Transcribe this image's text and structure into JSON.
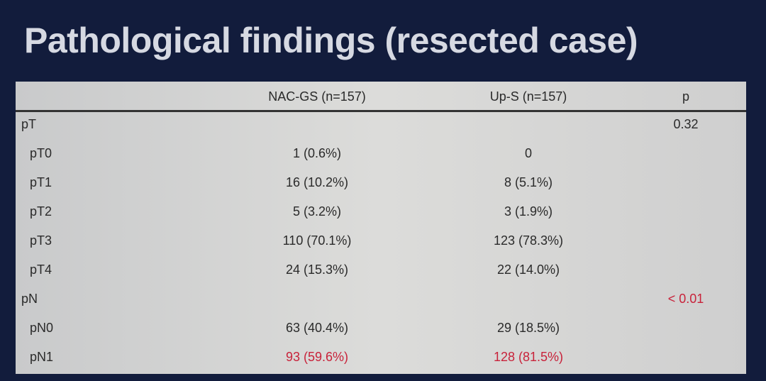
{
  "title": "Pathological findings (resected case)",
  "table": {
    "headers": [
      "",
      "NAC-GS  (n=157)",
      "Up-S (n=157)",
      "p"
    ],
    "rows": [
      {
        "label": "pT",
        "group": true,
        "nac": "",
        "ups": "",
        "p": "0.32",
        "highlight": false
      },
      {
        "label": "pT0",
        "group": false,
        "nac": "1 (0.6%)",
        "ups": "0",
        "p": "",
        "highlight": false
      },
      {
        "label": "pT1",
        "group": false,
        "nac": "16 (10.2%)",
        "ups": "8 (5.1%)",
        "p": "",
        "highlight": false
      },
      {
        "label": "pT2",
        "group": false,
        "nac": "5 (3.2%)",
        "ups": "3 (1.9%)",
        "p": "",
        "highlight": false
      },
      {
        "label": "pT3",
        "group": false,
        "nac": "110 (70.1%)",
        "ups": "123 (78.3%)",
        "p": "",
        "highlight": false
      },
      {
        "label": "pT4",
        "group": false,
        "nac": "24 (15.3%)",
        "ups": "22 (14.0%)",
        "p": "",
        "highlight": false
      },
      {
        "label": "pN",
        "group": true,
        "nac": "",
        "ups": "",
        "p": "< 0.01",
        "highlight": true
      },
      {
        "label": "pN0",
        "group": false,
        "nac": "63 (40.4%)",
        "ups": "29 (18.5%)",
        "p": "",
        "highlight": false
      },
      {
        "label": "pN1",
        "group": false,
        "nac": "93 (59.6%)",
        "ups": "128 (81.5%)",
        "p": "",
        "highlight": true
      }
    ]
  },
  "colors": {
    "background": "#121c3c",
    "highlight": "#c8223a",
    "text": "#2a2a2a"
  }
}
